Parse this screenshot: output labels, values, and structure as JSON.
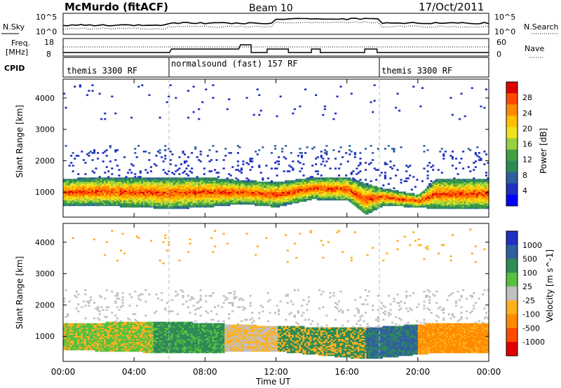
{
  "header": {
    "station": "McMurdo (fitACF)",
    "beam": "Beam 10",
    "date": "17/Oct/2011"
  },
  "panels": {
    "nsky_label": "N.Sky",
    "nsearch_label": "N.Search",
    "nsky_ticks": [
      "10^5",
      "10^0"
    ],
    "nsearch_ticks": [
      "10^5",
      "10^0"
    ],
    "freq_label_1": "Freq.",
    "freq_label_2": "[MHz]",
    "freq_ticks": [
      "18",
      "8"
    ],
    "nave_label": "Nave",
    "nave_ticks": [
      "60",
      "0"
    ],
    "cpid_label": "CPID",
    "cpid_segments": [
      "themis 3300 RF",
      "normalsound (fast) 157 RF",
      "themis 3300 RF"
    ]
  },
  "axes": {
    "ylabel": "Slant Range [km]",
    "yticks": [
      "4000",
      "3000",
      "2000",
      "1000"
    ],
    "xticks": [
      "00:00",
      "04:00",
      "08:00",
      "12:00",
      "16:00",
      "20:00",
      "00:00"
    ],
    "xlabel": "Time UT"
  },
  "power_bar": {
    "label": "Power [dB]",
    "ticks": [
      "28",
      "24",
      "20",
      "16",
      "12",
      "8",
      "4"
    ],
    "colors": [
      "#e00000",
      "#ff4a00",
      "#ff8c00",
      "#ffc000",
      "#f0e020",
      "#98d040",
      "#40a040",
      "#2e8b57",
      "#2e60a0",
      "#2030c0",
      "#0000ff"
    ]
  },
  "velocity_bar": {
    "label": "Velocity [m s^-1]",
    "ticks": [
      "1000",
      "500",
      "100",
      "25",
      "-25",
      "-100",
      "-500",
      "-1000"
    ],
    "colors": [
      "#2030c0",
      "#3060a0",
      "#2e8b57",
      "#58c040",
      "#c0c0c0",
      "#ffb020",
      "#ff8c00",
      "#ff4a00",
      "#e00000"
    ]
  },
  "chart_data": {
    "type": "heatmap",
    "title": "McMurdo (fitACF)  Beam 10  17/Oct/2011",
    "xlabel": "Time UT",
    "ylabel": "Slant Range [km]",
    "xlim": [
      0,
      24
    ],
    "ylim": [
      200,
      4600
    ],
    "cpid_switch_hours": [
      6,
      18
    ],
    "series": [
      {
        "name": "Power",
        "unit": "dB",
        "range": [
          0,
          30
        ],
        "main_echo_band_km": [
          {
            "t": 0,
            "lo": 550,
            "hi": 1400
          },
          {
            "t": 2,
            "lo": 550,
            "hi": 1450
          },
          {
            "t": 4,
            "lo": 500,
            "hi": 1450
          },
          {
            "t": 6,
            "lo": 450,
            "hi": 1450
          },
          {
            "t": 8,
            "lo": 500,
            "hi": 1450
          },
          {
            "t": 10,
            "lo": 600,
            "hi": 1350
          },
          {
            "t": 12,
            "lo": 500,
            "hi": 1300
          },
          {
            "t": 14,
            "lo": 750,
            "hi": 1450
          },
          {
            "t": 16,
            "lo": 700,
            "hi": 1450
          },
          {
            "t": 17,
            "lo": 250,
            "hi": 1250
          },
          {
            "t": 18,
            "lo": 550,
            "hi": 1100
          },
          {
            "t": 20,
            "lo": 500,
            "hi": 900
          },
          {
            "t": 21,
            "lo": 450,
            "hi": 1400
          },
          {
            "t": 24,
            "lo": 450,
            "hi": 1400
          }
        ]
      },
      {
        "name": "Velocity",
        "unit": "m s^-1",
        "range": [
          -1000,
          1000
        ],
        "main_echo_band_km": [
          {
            "t": 0,
            "lo": 550,
            "hi": 1400
          },
          {
            "t": 6,
            "lo": 450,
            "hi": 1450
          },
          {
            "t": 12,
            "lo": 500,
            "hi": 1300
          },
          {
            "t": 17,
            "lo": 250,
            "hi": 1250
          },
          {
            "t": 21,
            "lo": 450,
            "hi": 1400
          },
          {
            "t": 24,
            "lo": 450,
            "hi": 1400
          }
        ]
      }
    ]
  }
}
